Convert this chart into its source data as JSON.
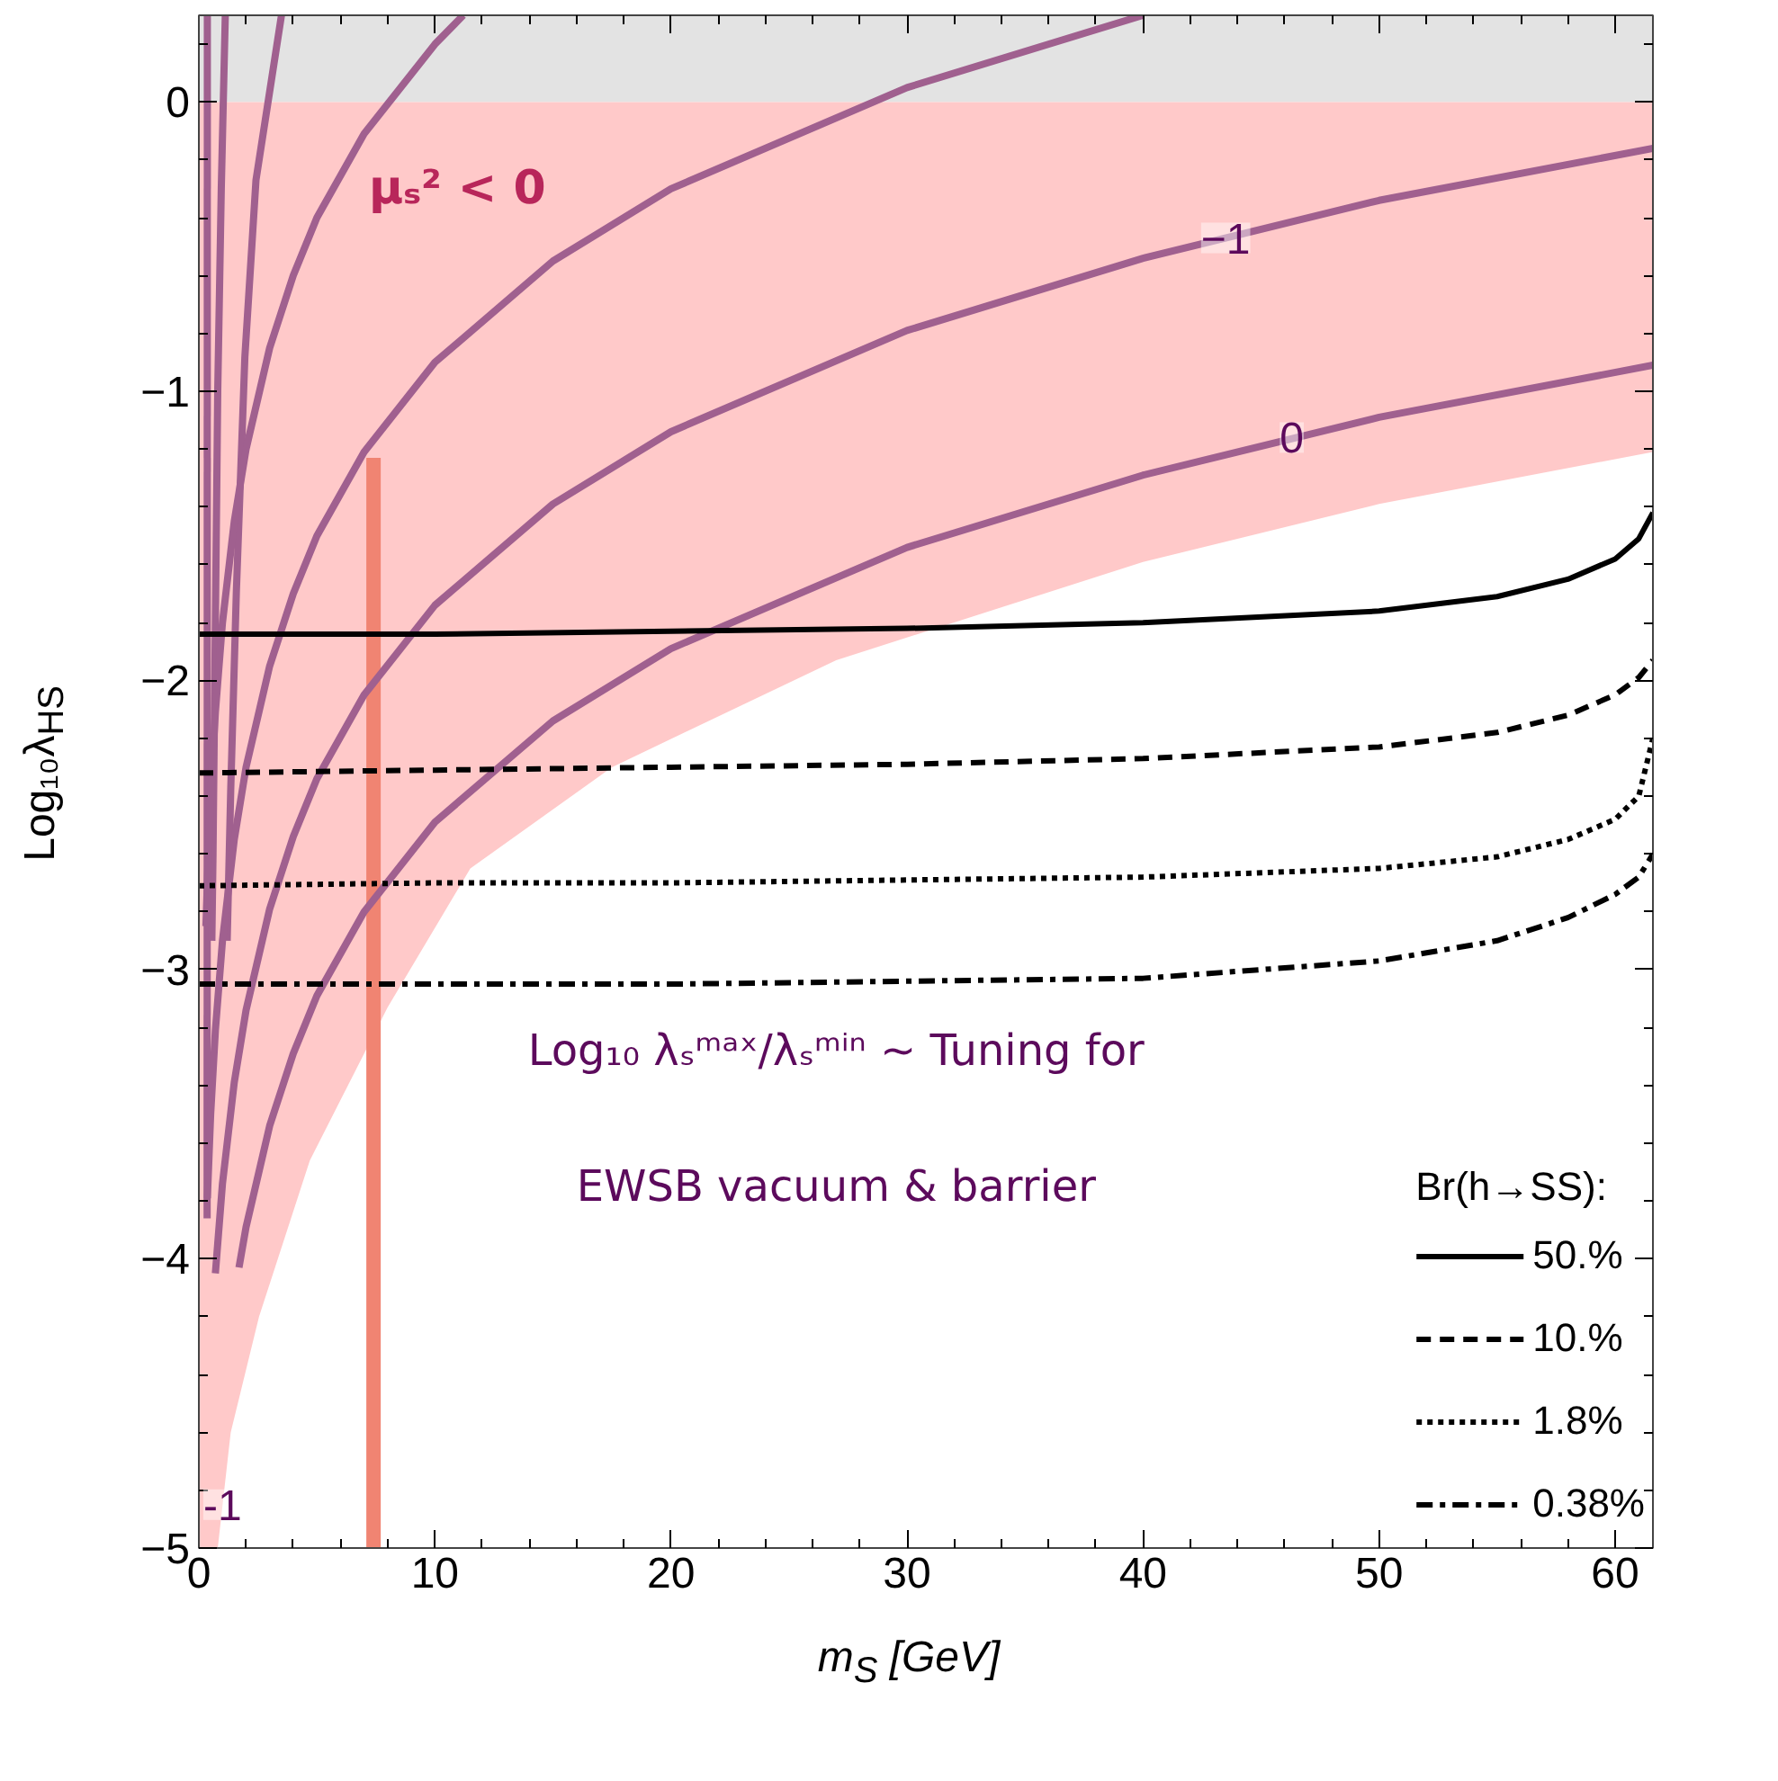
{
  "chart_data": {
    "type": "line",
    "xlabel": "m$_{S}$ [GeV]",
    "ylabel": "Log₁₀λ$_{HS}$",
    "legend_title": "Br(h→SS):",
    "xlim": [
      0,
      61.6
    ],
    "ylim": [
      -5,
      0.3
    ],
    "xticks": [
      0,
      10,
      20,
      30,
      40,
      50,
      60
    ],
    "yticks": [
      -5,
      -4,
      -3,
      -2,
      -1,
      0
    ],
    "grid": false,
    "legend": "bottom right",
    "bands": [
      {
        "axis": "y",
        "from": 0,
        "to": 0.3,
        "color": "#e3e3e3"
      }
    ],
    "series": [
      {
        "type": "area",
        "color": "#ffc9c9",
        "x": [
          0,
          0.8,
          1.35,
          2.55,
          4.7,
          8,
          11.5,
          17.5,
          27,
          40,
          50,
          61.6
        ],
        "values": [
          -5,
          -5,
          -4.6,
          -4.2,
          -3.66,
          -3.13,
          -2.65,
          -2.3,
          -1.93,
          -1.59,
          -1.39,
          -1.21
        ]
      },
      {
        "color": "#f08472",
        "x": [
          7.4,
          7.4
        ],
        "values": [
          -1.23,
          -5
        ]
      },
      {
        "color": "#a0608f",
        "x": [
          0.36,
          0.35
        ],
        "values": [
          0.3,
          -3.86
        ]
      },
      {
        "type": "line",
        "color": "#a0608f",
        "x": [
          1.12,
          0.95,
          0.8,
          0.7,
          0.6,
          0.55
        ],
        "values": [
          0.3,
          -0.3,
          -1.0,
          -1.8,
          -2.6,
          -2.9
        ]
      },
      {
        "type": "line",
        "color": "#a0608f",
        "x": [
          3.5,
          2.42,
          1.95,
          1.59,
          1.35,
          1.2
        ],
        "values": [
          0.3,
          -0.27,
          -0.88,
          -1.69,
          -2.38,
          -2.9
        ]
      },
      {
        "type": "line",
        "color": "#a0608f",
        "x": [
          0.3,
          0.4,
          0.5,
          0.7,
          1,
          1.5,
          2,
          3,
          4,
          5,
          7,
          10,
          11.2
        ],
        "values": [
          -2.85,
          -2.6,
          -2.4,
          -2.11,
          -1.8,
          -1.45,
          -1.2,
          -0.85,
          -0.6,
          -0.4,
          -0.11,
          0.2,
          0.3
        ]
      },
      {
        "type": "line",
        "color": "#a0608f",
        "x": [
          0.36,
          0.5,
          0.7,
          1,
          1.5,
          2,
          3,
          4,
          5,
          7,
          10,
          15,
          20,
          30,
          40
        ],
        "values": [
          -3.79,
          -3.5,
          -3.21,
          -2.9,
          -2.55,
          -2.3,
          -1.95,
          -1.7,
          -1.5,
          -1.21,
          -0.9,
          -0.55,
          -0.3,
          0.05,
          0.3
        ]
      },
      {
        "type": "line",
        "color": "#a0608f",
        "x": [
          0.7,
          1,
          1.5,
          2,
          3,
          4,
          5,
          7,
          10,
          15,
          20,
          30,
          40,
          50,
          61.6
        ],
        "values": [
          -4.05,
          -3.74,
          -3.39,
          -3.14,
          -2.79,
          -2.54,
          -2.34,
          -2.05,
          -1.74,
          -1.39,
          -1.14,
          -0.79,
          -0.54,
          -0.34,
          -0.16
        ]
      },
      {
        "type": "line",
        "color": "#a0608f",
        "x": [
          1.7,
          2,
          3,
          4,
          5,
          7,
          10,
          15,
          20,
          30,
          40,
          50,
          61.6
        ],
        "values": [
          -4.03,
          -3.89,
          -3.54,
          -3.29,
          -3.09,
          -2.8,
          -2.49,
          -2.14,
          -1.89,
          -1.54,
          -1.29,
          -1.09,
          -0.91
        ]
      },
      {
        "type": "line",
        "name": "50.%",
        "color": "#000000",
        "line_style": "solid",
        "x": [
          0,
          10,
          20,
          30,
          40,
          50,
          55,
          58,
          60,
          61,
          61.6
        ],
        "values": [
          -1.84,
          -1.84,
          -1.83,
          -1.82,
          -1.8,
          -1.76,
          -1.71,
          -1.65,
          -1.58,
          -1.51,
          -1.42
        ]
      },
      {
        "type": "line",
        "name": "10.%",
        "color": "#000000",
        "line_style": "dashed",
        "x": [
          0,
          10,
          20,
          30,
          40,
          50,
          55,
          58,
          60,
          61,
          61.6
        ],
        "values": [
          -2.32,
          -2.31,
          -2.3,
          -2.29,
          -2.27,
          -2.23,
          -2.18,
          -2.12,
          -2.05,
          -1.99,
          -1.93
        ]
      },
      {
        "type": "line",
        "name": "1.8%",
        "color": "#000000",
        "line_style": "dotted",
        "x": [
          0,
          10,
          20,
          30,
          40,
          50,
          55,
          58,
          60,
          61,
          61.6
        ],
        "values": [
          -2.71,
          -2.7,
          -2.7,
          -2.69,
          -2.68,
          -2.65,
          -2.61,
          -2.55,
          -2.48,
          -2.4,
          -2.2
        ]
      },
      {
        "type": "line",
        "name": "0.38%",
        "color": "#000000",
        "line_style": "dashdot",
        "x": [
          0,
          10,
          20,
          30,
          40,
          50,
          55,
          58,
          60,
          61,
          61.6
        ],
        "values": [
          -3.05,
          -3.05,
          -3.05,
          -3.04,
          -3.03,
          -2.97,
          -2.9,
          -2.82,
          -2.74,
          -2.68,
          -2.6
        ]
      }
    ],
    "annotations": [
      "μₛ² < 0",
      "Log₁₀ λₛᵐᵃˣ/λₛᵐⁱⁿ ~ Tuning for",
      "EWSB vacuum & barrier",
      {
        "text": "−1",
        "x": 43.5,
        "y": -0.47
      },
      {
        "text": "0",
        "x": 46.3,
        "y": -1.16
      },
      {
        "text": "-1",
        "x": 1.0,
        "y": -4.85
      }
    ]
  }
}
